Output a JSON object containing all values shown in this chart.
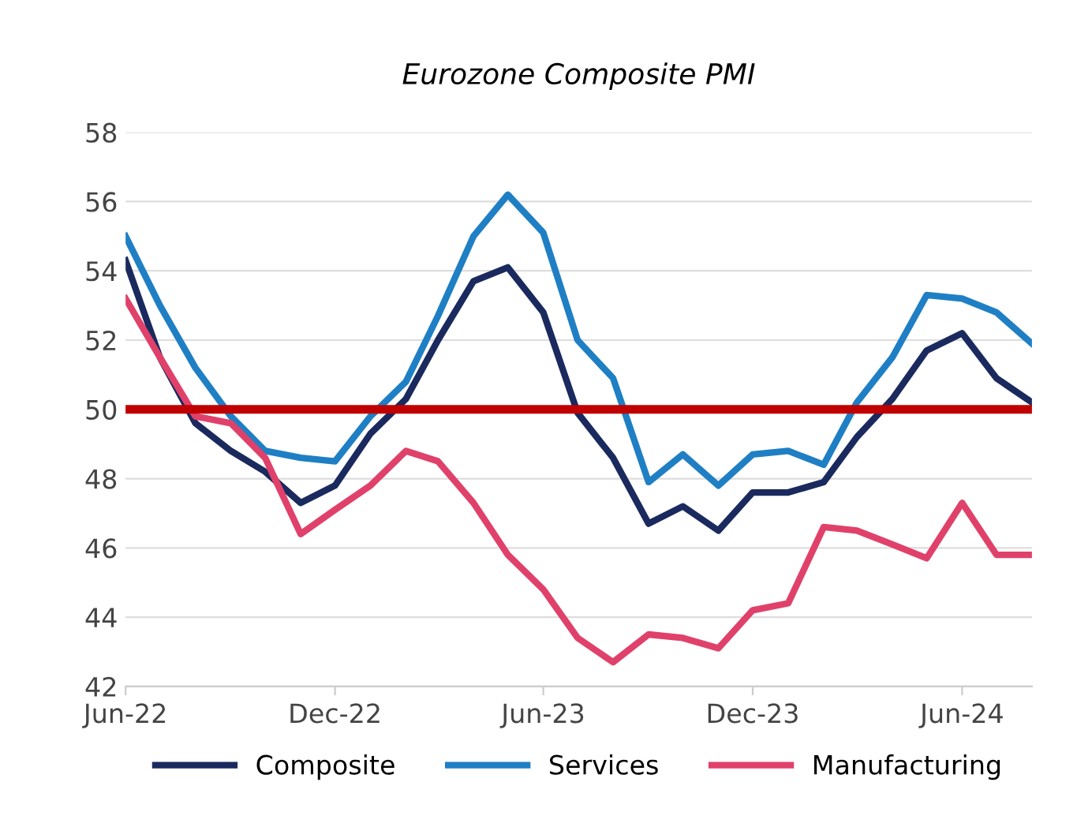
{
  "chart_data": {
    "type": "line",
    "title": "Eurozone Composite PMI",
    "x": [
      "2022-06",
      "2022-07",
      "2022-08",
      "2022-09",
      "2022-10",
      "2022-11",
      "2022-12",
      "2023-01",
      "2023-02",
      "2023-03",
      "2023-04",
      "2023-05",
      "2023-06",
      "2023-07",
      "2023-08",
      "2023-09",
      "2023-10",
      "2023-11",
      "2023-12",
      "2024-01",
      "2024-02",
      "2024-03",
      "2024-04",
      "2024-05",
      "2024-06",
      "2024-07",
      "2024-08"
    ],
    "series": [
      {
        "name": "Composite",
        "color": "#1a2a5e",
        "values": [
          54.3,
          51.5,
          49.6,
          48.8,
          48.2,
          47.3,
          47.8,
          49.3,
          50.3,
          52.0,
          53.7,
          54.1,
          52.8,
          49.9,
          48.6,
          46.7,
          47.2,
          46.5,
          47.6,
          47.6,
          47.9,
          49.2,
          50.3,
          51.7,
          52.2,
          50.9,
          50.2
        ]
      },
      {
        "name": "Services",
        "color": "#1f7fc4",
        "values": [
          55.0,
          53.0,
          51.2,
          49.8,
          48.8,
          48.6,
          48.5,
          49.8,
          50.8,
          52.7,
          55.0,
          56.2,
          55.1,
          52.0,
          50.9,
          47.9,
          48.7,
          47.8,
          48.7,
          48.8,
          48.4,
          50.2,
          51.5,
          53.3,
          53.2,
          52.8,
          51.9
        ]
      },
      {
        "name": "Manufacturing",
        "color": "#e0416a",
        "values": [
          53.2,
          51.5,
          49.8,
          49.6,
          48.6,
          46.4,
          47.1,
          47.8,
          48.8,
          48.5,
          47.3,
          45.8,
          44.8,
          43.4,
          42.7,
          43.5,
          43.4,
          43.1,
          44.2,
          44.4,
          46.6,
          46.5,
          46.1,
          45.7,
          47.3,
          45.8,
          45.8
        ]
      }
    ],
    "ref_lines": [
      {
        "axis": "y",
        "value": 50,
        "color": "#c00000"
      }
    ],
    "ylim": [
      42,
      58
    ],
    "yticks": [
      42,
      44,
      46,
      48,
      50,
      52,
      54,
      56,
      58
    ],
    "xlim": [
      "2022-06",
      "2024-08"
    ],
    "xticks": [
      {
        "value": "2022-06",
        "label": "Jun-22"
      },
      {
        "value": "2022-12",
        "label": "Dec-22"
      },
      {
        "value": "2023-06",
        "label": "Jun-23"
      },
      {
        "value": "2023-12",
        "label": "Dec-23"
      },
      {
        "value": "2024-06",
        "label": "Jun-24"
      }
    ],
    "grid": "y",
    "legend": "bottom",
    "line_style": "solid"
  }
}
